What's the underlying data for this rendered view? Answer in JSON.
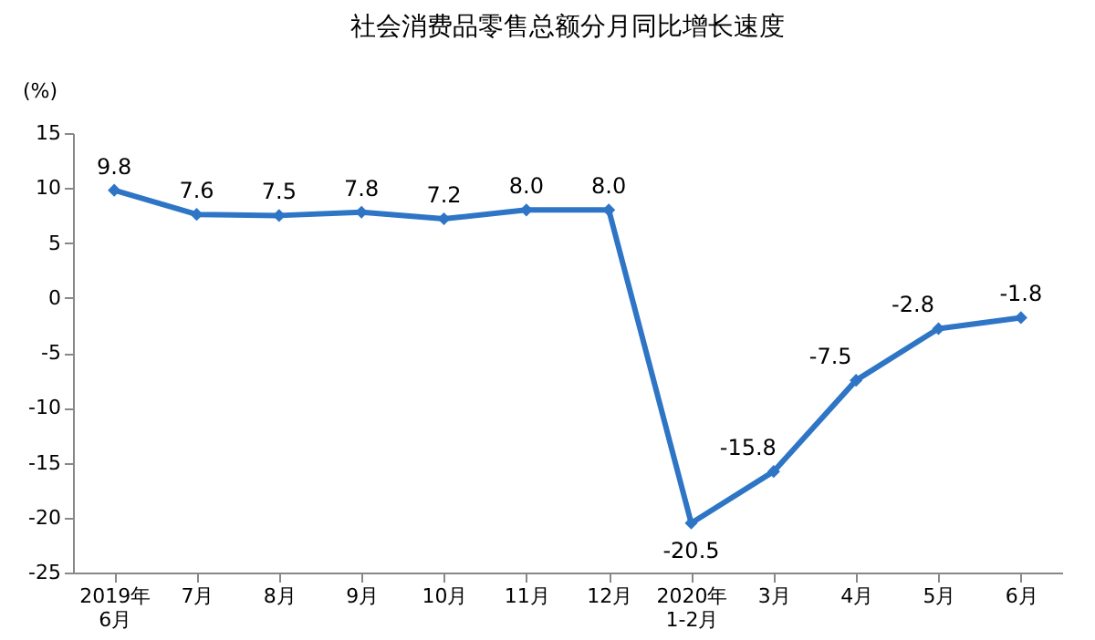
{
  "chart_data": {
    "type": "line",
    "title": "社会消费品零售总额分月同比增长速度",
    "ylabel": "(%)",
    "categories": [
      "2019年\n6月",
      "7月",
      "8月",
      "9月",
      "10月",
      "11月",
      "12月",
      "2020年\n1-2月",
      "3月",
      "4月",
      "5月",
      "6月"
    ],
    "series": [
      {
        "color": "#2e75c6",
        "values": [
          9.8,
          7.6,
          7.5,
          7.8,
          7.2,
          8.0,
          8.0,
          -20.5,
          -15.8,
          -7.5,
          -2.8,
          -1.8
        ],
        "value_labels": [
          "9.8",
          "7.6",
          "7.5",
          "7.8",
          "7.2",
          "8.0",
          "8.0",
          "-20.5",
          "-15.8",
          "-7.5",
          "-2.8",
          "-1.8"
        ]
      }
    ],
    "ylim": [
      -25,
      15
    ],
    "yticks": [
      -25,
      -20,
      -15,
      -10,
      -5,
      0,
      5,
      10,
      15
    ],
    "grid": false,
    "marker": "diamond",
    "line_style": "solid"
  }
}
